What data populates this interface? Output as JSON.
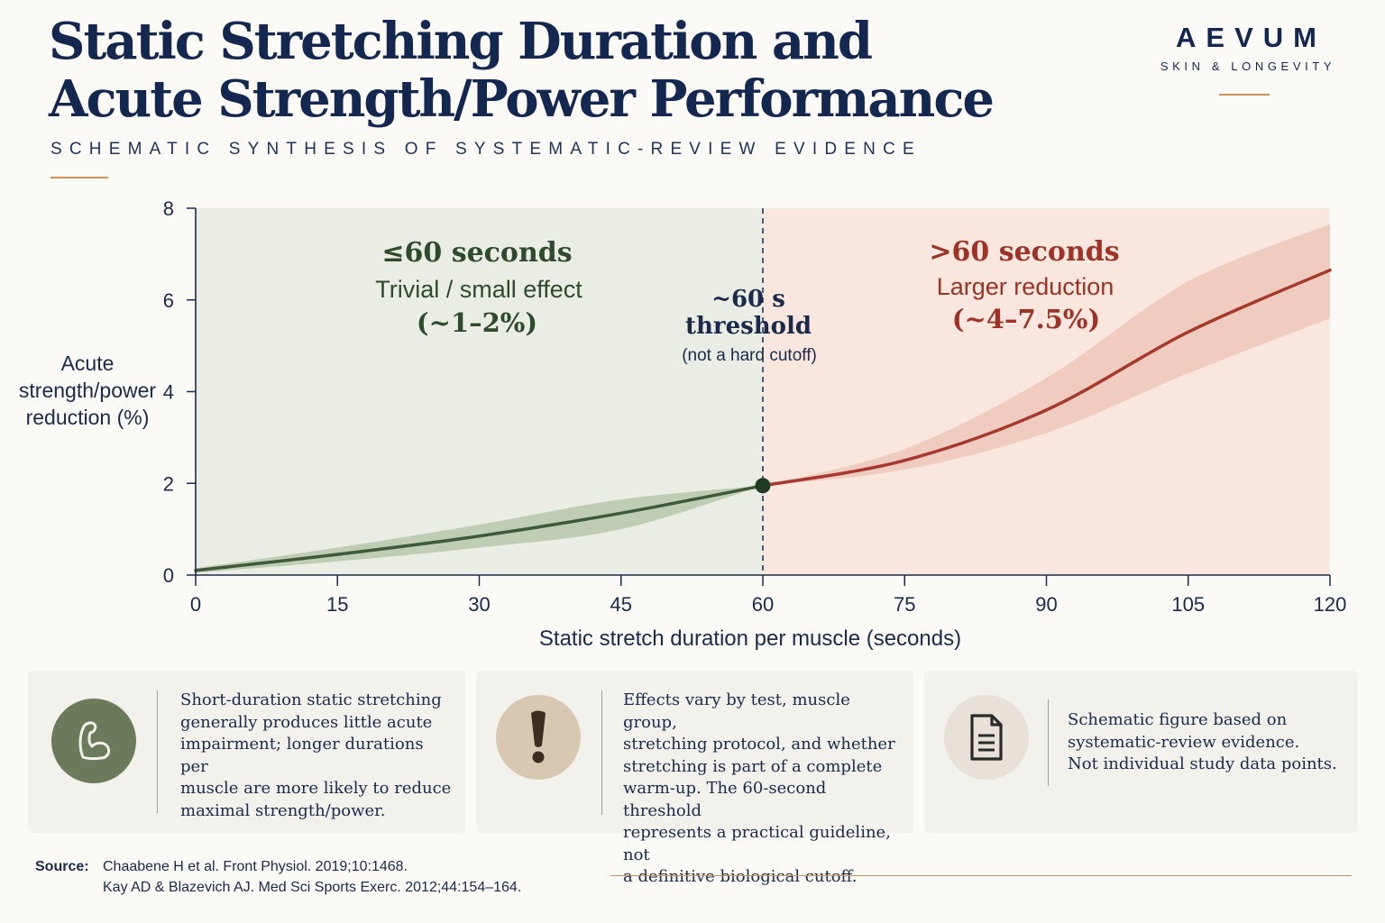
{
  "header": {
    "title_line1": "Static Stretching Duration and",
    "title_line2": "Acute Strength/Power Performance",
    "subtitle": "SCHEMATIC SYNTHESIS OF SYSTEMATIC-REVIEW EVIDENCE"
  },
  "brand": {
    "name": "AEVUM",
    "tagline": "SKIN & LONGEVITY"
  },
  "chart_data": {
    "type": "line",
    "xlabel": "Static stretch duration per muscle (seconds)",
    "ylabel": [
      "Acute",
      "strength/power",
      "reduction (%)"
    ],
    "xlim": [
      0,
      120
    ],
    "ylim": [
      0,
      8
    ],
    "x_ticks": [
      0,
      15,
      30,
      45,
      60,
      75,
      90,
      105,
      120
    ],
    "y_ticks": [
      0,
      2,
      4,
      6,
      8
    ],
    "grid": false,
    "threshold_x": 60,
    "series": [
      {
        "segment": "short",
        "color": "#3e5a3a",
        "band_color": "#b9c7ad",
        "x": [
          0,
          15,
          30,
          45,
          60
        ],
        "y": [
          0.1,
          0.45,
          0.85,
          1.35,
          1.95
        ],
        "lower": [
          0.05,
          0.3,
          0.6,
          1.0,
          1.95
        ],
        "upper": [
          0.15,
          0.6,
          1.1,
          1.65,
          1.95
        ]
      },
      {
        "segment": "long",
        "color": "#a5392b",
        "band_color": "#eec7bb",
        "x": [
          60,
          75,
          90,
          105,
          120
        ],
        "y": [
          1.95,
          2.5,
          3.6,
          5.3,
          6.65
        ],
        "lower": [
          1.95,
          2.3,
          3.1,
          4.4,
          5.6
        ],
        "upper": [
          1.95,
          2.75,
          4.3,
          6.4,
          7.65
        ]
      }
    ],
    "threshold_point": {
      "x": 60,
      "y": 1.95
    },
    "regions": {
      "left": {
        "heading": "≤60 seconds",
        "line1": "Trivial / small effect",
        "line2": "(~1–2%)",
        "fill": "#e9ede4",
        "color": "#2f4a2c"
      },
      "right": {
        "heading": ">60 seconds",
        "line1": "Larger reduction",
        "line2": "(~4–7.5%)",
        "fill": "#f8e6df",
        "color": "#9c3326"
      }
    },
    "threshold_label": {
      "line1": "~60 s",
      "line2": "threshold",
      "note": "(not a hard cutoff)"
    }
  },
  "cards": [
    {
      "icon": "flexed-arm-icon",
      "icon_bg": "#6b7a5b",
      "lines": [
        "Short-duration static stretching",
        "generally produces little acute",
        "impairment; longer durations per",
        "muscle are more likely to reduce",
        "maximal strength/power."
      ]
    },
    {
      "icon": "exclamation-icon",
      "icon_bg": "#d8c8b2",
      "lines": [
        "Effects vary by test, muscle group,",
        "stretching protocol, and whether",
        "stretching is part of a complete",
        "warm-up. The 60-second threshold",
        "represents a practical guideline, not",
        "a definitive biological cutoff."
      ]
    },
    {
      "icon": "document-icon",
      "icon_bg": "#e7e1d8",
      "lines": [
        "Schematic figure based on",
        "systematic-review evidence.",
        "Not individual study data points."
      ]
    }
  ],
  "source": {
    "label": "Source:",
    "line1": "Chaabene H et al. Front Physiol. 2019;10:1468.",
    "line2": "Kay AD & Blazevich AJ. Med Sci Sports Exerc. 2012;44:154–164."
  }
}
